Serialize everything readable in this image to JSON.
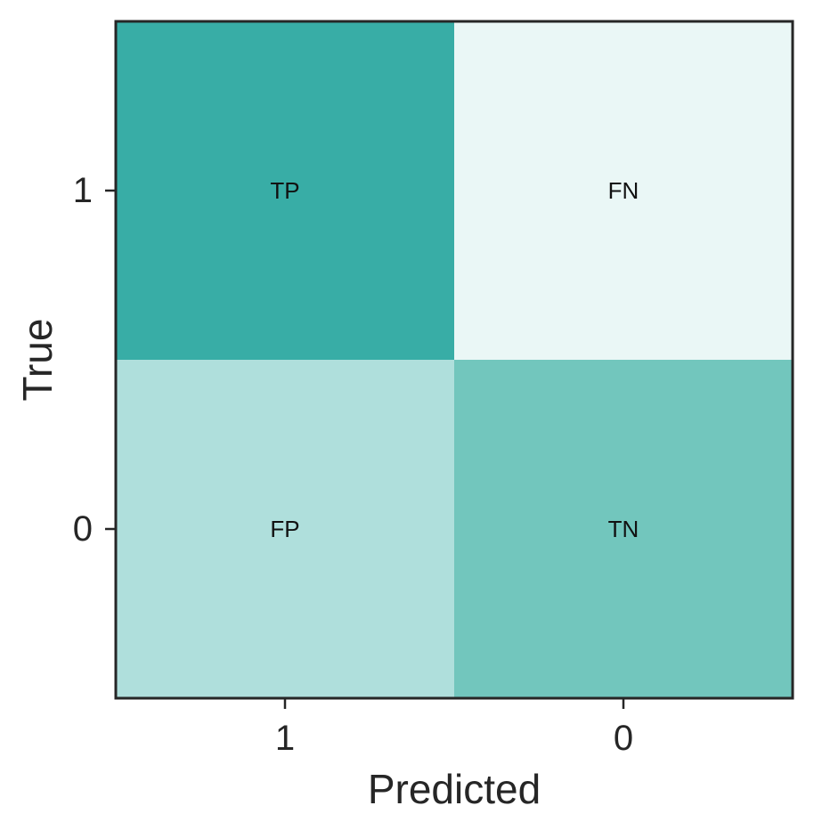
{
  "chart_data": {
    "type": "heatmap",
    "title": "",
    "xlabel": "Predicted",
    "ylabel": "True",
    "x_categories": [
      "1",
      "0"
    ],
    "y_categories": [
      "1",
      "0"
    ],
    "cells": [
      {
        "row": 0,
        "col": 0,
        "label": "TP",
        "color": "#38ada6"
      },
      {
        "row": 0,
        "col": 1,
        "label": "FN",
        "color": "#eaf7f6"
      },
      {
        "row": 1,
        "col": 0,
        "label": "FP",
        "color": "#afdfdc"
      },
      {
        "row": 1,
        "col": 1,
        "label": "TN",
        "color": "#72c6bd"
      }
    ],
    "frame_color": "#262626"
  }
}
